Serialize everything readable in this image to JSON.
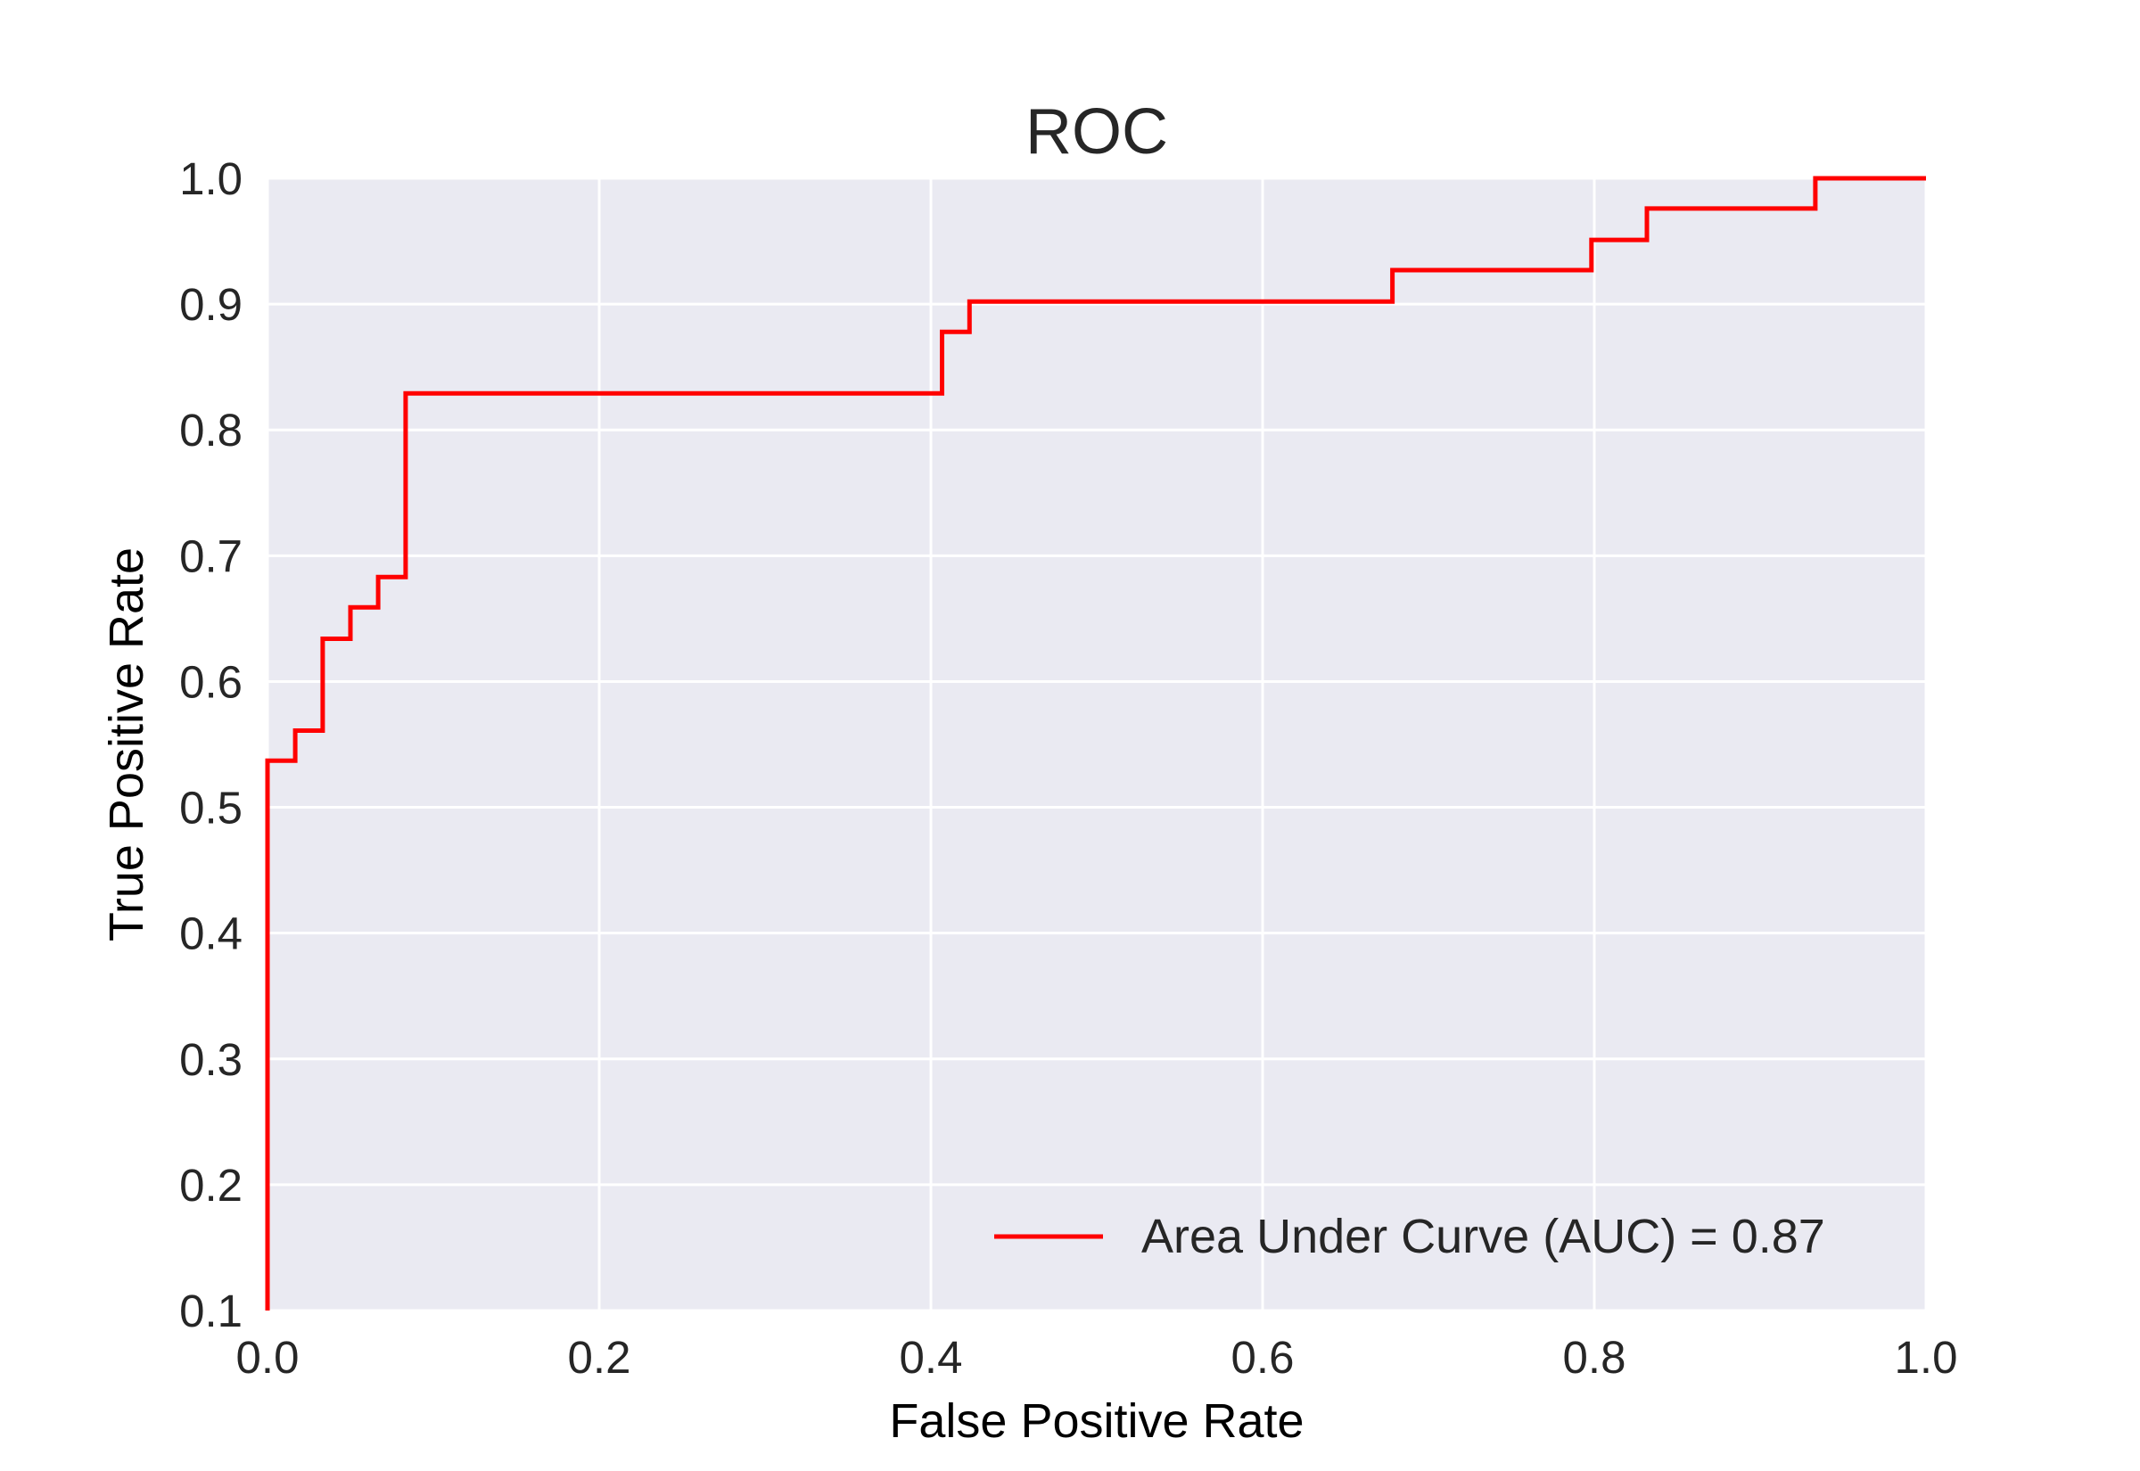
{
  "chart_data": {
    "type": "line",
    "title": "ROC",
    "xlabel": "False Positive Rate",
    "ylabel": "True Positive Rate",
    "xlim": [
      0.0,
      1.0
    ],
    "ylim": [
      0.1,
      1.0
    ],
    "xticks": [
      "0.0",
      "0.2",
      "0.4",
      "0.6",
      "0.8",
      "1.0"
    ],
    "yticks": [
      "0.1",
      "0.2",
      "0.3",
      "0.4",
      "0.5",
      "0.6",
      "0.7",
      "0.8",
      "0.9",
      "1.0"
    ],
    "grid": true,
    "legend_position": "lower-right",
    "series": [
      {
        "name": "Area Under Curve (AUC) = 0.87",
        "color": "#ff0000",
        "step": true,
        "x": [
          0.0,
          0.0,
          0.0167,
          0.0167,
          0.0333,
          0.0333,
          0.05,
          0.05,
          0.0667,
          0.0667,
          0.0833,
          0.0833,
          0.4067,
          0.4067,
          0.4233,
          0.4233,
          0.6783,
          0.6783,
          0.7983,
          0.7983,
          0.8317,
          0.8317,
          0.9333,
          0.9333,
          1.0
        ],
        "y": [
          0.1,
          0.537,
          0.537,
          0.561,
          0.561,
          0.634,
          0.634,
          0.659,
          0.659,
          0.683,
          0.683,
          0.829,
          0.829,
          0.878,
          0.878,
          0.902,
          0.902,
          0.927,
          0.927,
          0.951,
          0.951,
          0.976,
          0.976,
          1.0,
          1.0
        ]
      }
    ],
    "colors": {
      "plot_background": "#eaeaf2",
      "grid": "#ffffff",
      "text": "#262626"
    }
  }
}
